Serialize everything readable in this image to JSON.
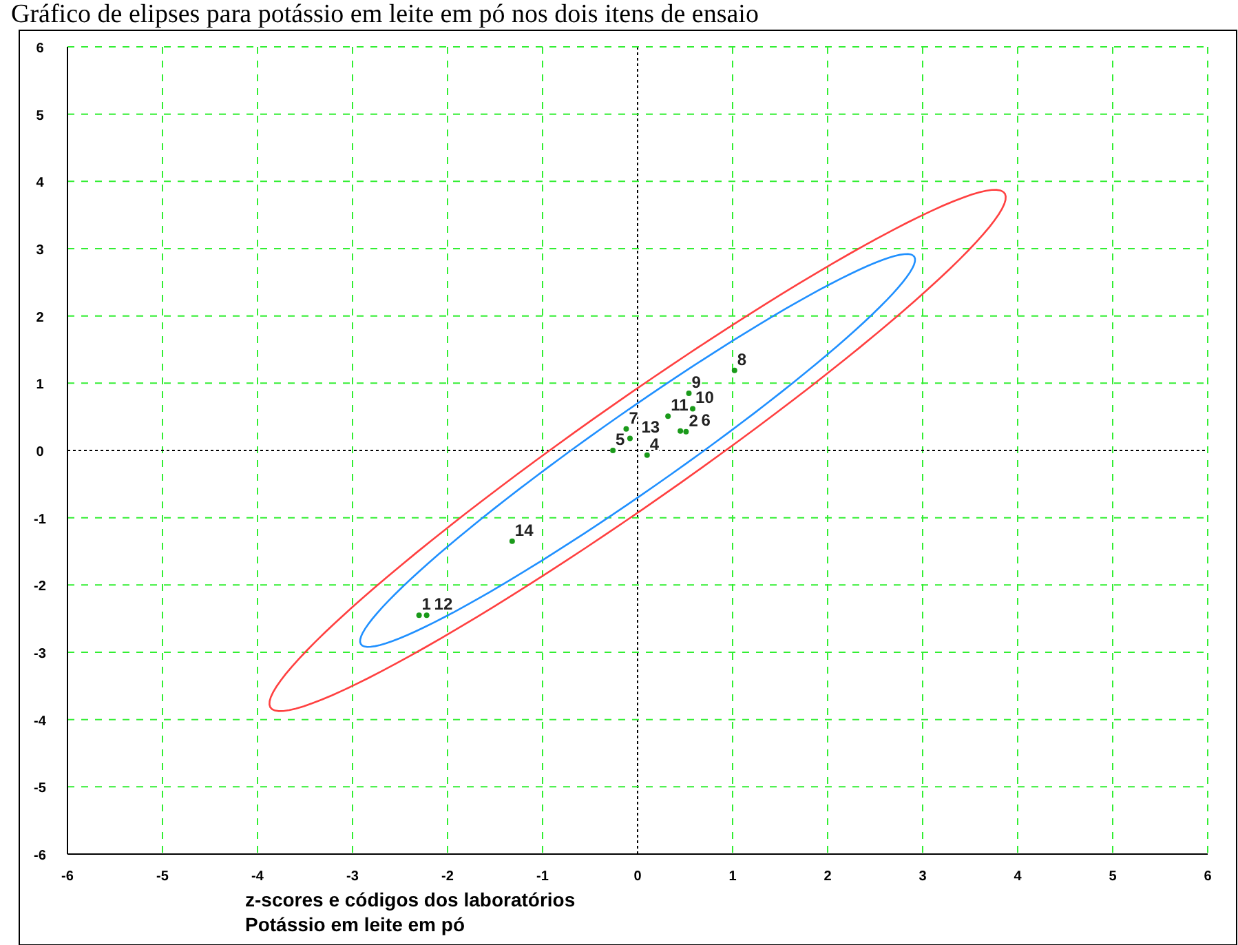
{
  "chart_data": {
    "type": "scatter",
    "title": "Gráfico de elipses para potássio em leite em pó nos dois itens de ensaio",
    "xlabel": "z-scores e códigos dos laboratórios",
    "xlim": [
      -6,
      6
    ],
    "xticks": [
      -6,
      -5,
      -4,
      -3,
      -2,
      -1,
      0,
      1,
      2,
      3,
      4,
      5,
      6
    ],
    "ylim": [
      -6,
      6
    ],
    "yticks": [
      -6,
      -5,
      -4,
      -3,
      -2,
      -1,
      0,
      1,
      2,
      3,
      4,
      5,
      6
    ],
    "grid": true,
    "series": [
      {
        "type": "scatter",
        "color": "#1a9a1a",
        "marker": "circle",
        "x": [
          -2.3,
          0.51,
          0.1,
          -0.26,
          0.45,
          -0.12,
          1.02,
          0.54,
          0.58,
          0.32,
          -2.22,
          -0.08,
          -1.32
        ],
        "values": [
          -2.45,
          0.28,
          -0.07,
          0.0,
          0.29,
          0.32,
          1.19,
          0.85,
          0.62,
          0.51,
          -2.45,
          0.18,
          -1.35
        ]
      }
    ],
    "annotations": [
      {
        "text": "1",
        "x": -2.3,
        "y": -2.45
      },
      {
        "text": "2",
        "x": 0.51,
        "y": 0.28
      },
      {
        "text": "4",
        "x": 0.1,
        "y": -0.07
      },
      {
        "text": "5",
        "x": -0.26,
        "y": 0.0
      },
      {
        "text": "6",
        "x": 0.45,
        "y": 0.29
      },
      {
        "text": "7",
        "x": -0.12,
        "y": 0.32
      },
      {
        "text": "8",
        "x": 1.02,
        "y": 1.19
      },
      {
        "text": "9",
        "x": 0.54,
        "y": 0.85
      },
      {
        "text": "10",
        "x": 0.58,
        "y": 0.62
      },
      {
        "text": "11",
        "x": 0.32,
        "y": 0.51
      },
      {
        "text": "12",
        "x": -2.22,
        "y": -2.45
      },
      {
        "text": "13",
        "x": -0.08,
        "y": 0.18
      },
      {
        "text": "14",
        "x": -1.32,
        "y": -1.35
      },
      "Potássio em leite em pó"
    ]
  }
}
